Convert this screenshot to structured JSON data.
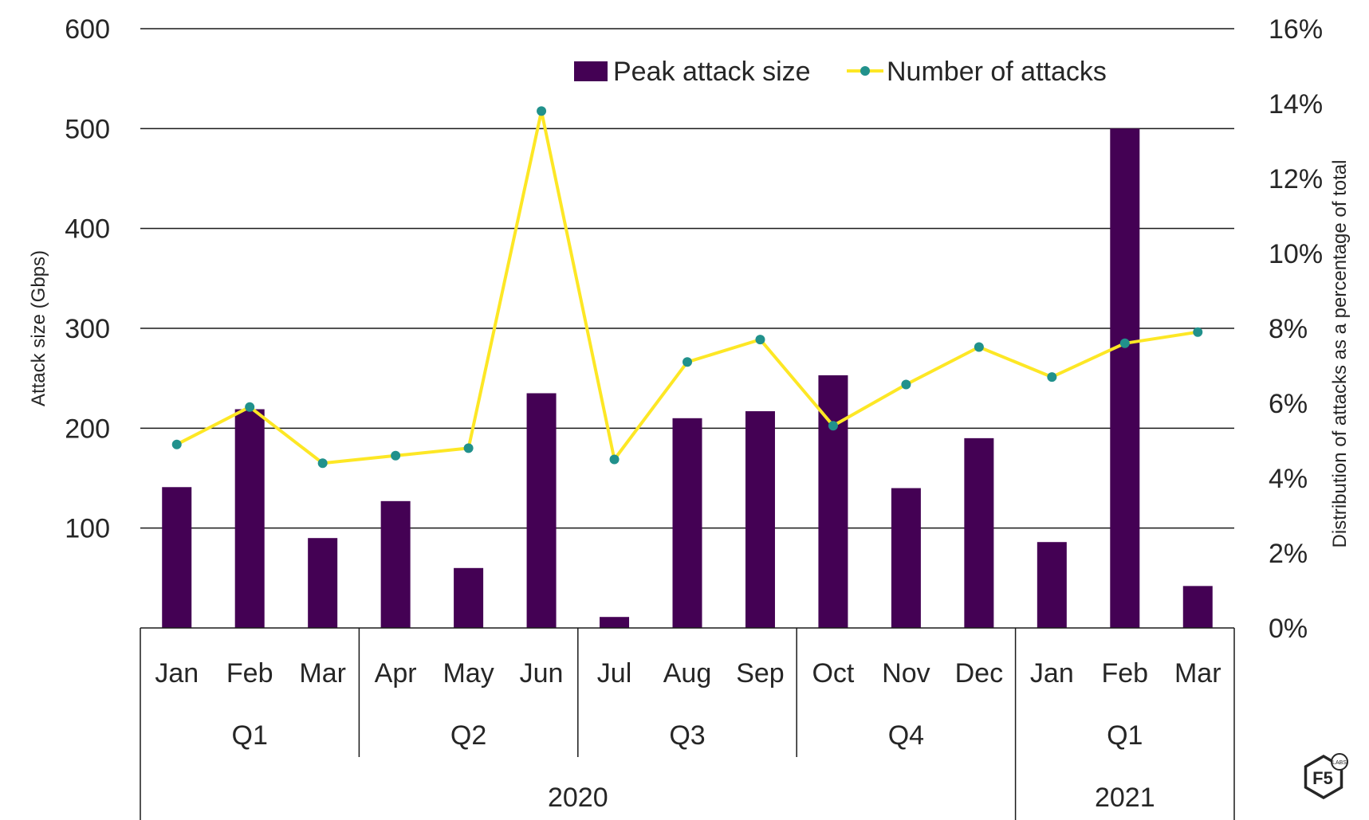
{
  "chart_data": {
    "type": "bar",
    "categories": [
      "Jan",
      "Feb",
      "Mar",
      "Apr",
      "May",
      "Jun",
      "Jul",
      "Aug",
      "Sep",
      "Oct",
      "Nov",
      "Dec",
      "Jan",
      "Feb",
      "Mar"
    ],
    "quarters": [
      {
        "label": "Q1",
        "months": 3
      },
      {
        "label": "Q2",
        "months": 3
      },
      {
        "label": "Q3",
        "months": 3
      },
      {
        "label": "Q4",
        "months": 3
      },
      {
        "label": "Q1",
        "months": 3
      }
    ],
    "years": [
      {
        "label": "2020",
        "months": 12
      },
      {
        "label": "2021",
        "months": 3
      }
    ],
    "series": [
      {
        "name": "Peak attack size",
        "type": "bar",
        "axis": "left",
        "color": "#440154",
        "values": [
          141,
          219,
          90,
          127,
          60,
          235,
          11,
          210,
          217,
          253,
          140,
          190,
          86,
          500,
          42
        ]
      },
      {
        "name": "Number of attacks",
        "type": "line",
        "axis": "right",
        "color": "#FDE725",
        "marker_color": "#21918C",
        "values": [
          4.9,
          5.9,
          4.4,
          4.6,
          4.8,
          13.8,
          4.5,
          7.1,
          7.7,
          5.4,
          6.5,
          7.5,
          6.7,
          7.6,
          7.9
        ]
      }
    ],
    "left_axis": {
      "label": "Attack size (Gbps)",
      "ylim": [
        0,
        600
      ],
      "ticks": [
        100,
        200,
        300,
        400,
        500,
        600
      ],
      "tick_labels": [
        "100",
        "200",
        "300",
        "400",
        "500",
        "600"
      ]
    },
    "right_axis": {
      "label": "Distribution of attacks as a percentage of total",
      "ylim": [
        0,
        16
      ],
      "ticks": [
        0,
        2,
        4,
        6,
        8,
        10,
        12,
        14,
        16
      ],
      "tick_labels": [
        "0%",
        "2%",
        "4%",
        "6%",
        "8%",
        "10%",
        "12%",
        "14%",
        "16%"
      ]
    },
    "grid": true,
    "legend_position": "top-right"
  },
  "logo": {
    "text": "F5",
    "subtext": "LABS"
  }
}
